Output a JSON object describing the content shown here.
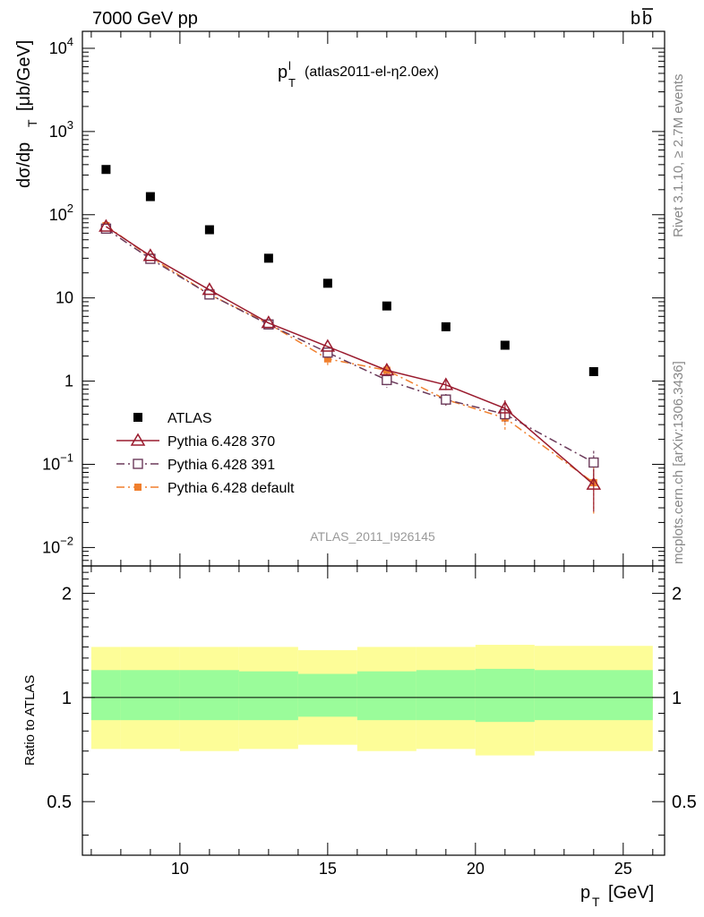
{
  "header": {
    "energy_label": "7000 GeV pp",
    "process_label": "b",
    "process_label_bar": "b"
  },
  "side": {
    "rivet_label": "Rivet 3.1.10, ≥ 2.7M events",
    "mcplots_label": "mcplots.cern.ch [arXiv:1306.3436]"
  },
  "chart_data": {
    "type": "scatter",
    "title_main": "p",
    "title_sup": "l",
    "title_sub": "T",
    "title_detail": "(atlas2011-el-η2.0ex)",
    "analysis_id": "ATLAS_2011_I926145",
    "ylabel": "dσ/dp",
    "ylabel_sub": "T",
    "ylabel_unit": "[μb/GeV]",
    "xlabel": "p",
    "xlabel_sub": "T",
    "xlabel_unit": "[GeV]",
    "ratio_ylabel": "Ratio to ATLAS",
    "y_scale": "log",
    "xlim": [
      6.7,
      26.4
    ],
    "ylim": [
      0.006,
      16000
    ],
    "ratio_ylim": [
      0.35,
      2.4
    ],
    "ratio_y_scale": "log",
    "x_ticks": [
      10,
      15,
      20,
      25
    ],
    "y_ticks": [
      {
        "value": 0.01,
        "base": "10",
        "exp": "−2"
      },
      {
        "value": 0.1,
        "base": "10",
        "exp": "−1"
      },
      {
        "value": 1,
        "base": "1",
        "exp": ""
      },
      {
        "value": 10,
        "base": "10",
        "exp": ""
      },
      {
        "value": 100,
        "base": "10",
        "exp": "2"
      },
      {
        "value": 1000,
        "base": "10",
        "exp": "3"
      },
      {
        "value": 10000,
        "base": "10",
        "exp": "4"
      }
    ],
    "ratio_ticks": [
      {
        "value": 0.5,
        "label": "0.5"
      },
      {
        "value": 1,
        "label": "1"
      },
      {
        "value": 2,
        "label": "2"
      }
    ],
    "x": [
      7.5,
      9,
      11,
      13,
      15,
      17,
      19,
      21,
      24
    ],
    "bin_edges": [
      7,
      8,
      10,
      12,
      14,
      16,
      18,
      20,
      22,
      26
    ],
    "legend_position": "lower-left",
    "series": [
      {
        "name": "ATLAS",
        "values": [
          350,
          165,
          66,
          30,
          15,
          8,
          4.5,
          2.7,
          1.3
        ],
        "color": "#000000",
        "marker": "filled-square"
      },
      {
        "name": "Pythia 6.428 370",
        "values": [
          72,
          32,
          12.5,
          5.0,
          2.6,
          1.35,
          0.9,
          0.47,
          0.057
        ],
        "errors": [
          0,
          0,
          0,
          0,
          0,
          0,
          0.12,
          0.12,
          0.03
        ],
        "color": "#9a1b2e",
        "line_style": "solid",
        "marker": "open-triangle"
      },
      {
        "name": "Pythia 6.428 391",
        "values": [
          68,
          29.5,
          11,
          4.8,
          2.2,
          1.03,
          0.6,
          0.4,
          0.105
        ],
        "errors": [
          0,
          0,
          0,
          0,
          0.3,
          0.2,
          0.1,
          0.08,
          0.04
        ],
        "color": "#6b3a5a",
        "line_style": "dash-dot",
        "marker": "open-square"
      },
      {
        "name": "Pythia 6.428 default",
        "values": [
          74,
          31,
          11,
          4.9,
          1.85,
          1.35,
          0.6,
          0.36,
          0.06
        ],
        "errors": [
          0,
          0,
          0,
          0,
          0.3,
          0.2,
          0.1,
          0.1,
          0.035
        ],
        "color": "#f07f2d",
        "line_style": "dash-dot",
        "marker": "filled-square"
      }
    ],
    "ratio_bands": {
      "inner": {
        "color": "#9afc9a",
        "upper": [
          1.2,
          1.2,
          1.2,
          1.19,
          1.17,
          1.19,
          1.2,
          1.21,
          1.2
        ],
        "lower": [
          0.86,
          0.86,
          0.86,
          0.86,
          0.88,
          0.86,
          0.86,
          0.85,
          0.86
        ]
      },
      "outer": {
        "color": "#fdfd98",
        "upper": [
          1.4,
          1.4,
          1.4,
          1.4,
          1.37,
          1.4,
          1.4,
          1.42,
          1.41
        ],
        "lower": [
          0.71,
          0.71,
          0.7,
          0.71,
          0.73,
          0.7,
          0.71,
          0.68,
          0.7
        ]
      }
    }
  }
}
